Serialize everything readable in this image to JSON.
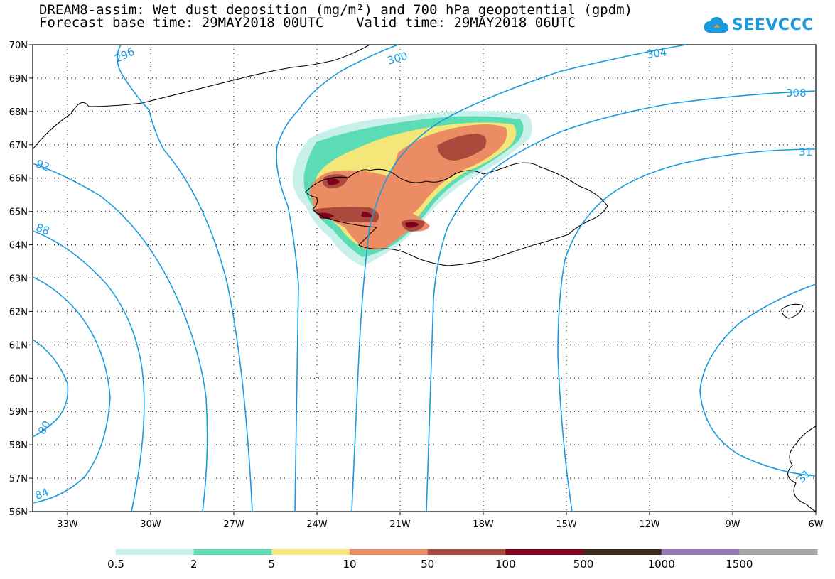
{
  "title": {
    "line1": "DREAM8-assim: Wet dust deposition (mg/m²) and 700 hPa geopotential (gpdm)",
    "line2": "Forecast base time: 29MAY2018 00UTC    Valid time: 29MAY2018 06UTC"
  },
  "logo": {
    "text": "SEEVCCC",
    "icon": "cloud-icon",
    "color": "#1a9be0"
  },
  "map": {
    "lon_ticks": [
      "33W",
      "30W",
      "27W",
      "24W",
      "21W",
      "18W",
      "15W",
      "12W",
      "9W",
      "6W"
    ],
    "lat_ticks": [
      "70N",
      "69N",
      "68N",
      "67N",
      "66N",
      "65N",
      "64N",
      "63N",
      "62N",
      "61N",
      "60N",
      "59N",
      "58N",
      "57N",
      "56N"
    ],
    "contour_color": "#1a9be0",
    "contour_labels": [
      "296",
      "300",
      "304",
      "308",
      "31",
      "92",
      "88",
      "80",
      "84",
      "31"
    ]
  },
  "colorbar": {
    "labels": [
      "0.5",
      "2",
      "5",
      "10",
      "50",
      "100",
      "500",
      "1000",
      "1500"
    ],
    "colors": [
      "#c8f0ea",
      "#5cdcb4",
      "#f5e67a",
      "#eb8c64",
      "#aa4a3c",
      "#82001e",
      "#3c2814",
      "#9678b4",
      "#a5a5a5"
    ]
  }
}
